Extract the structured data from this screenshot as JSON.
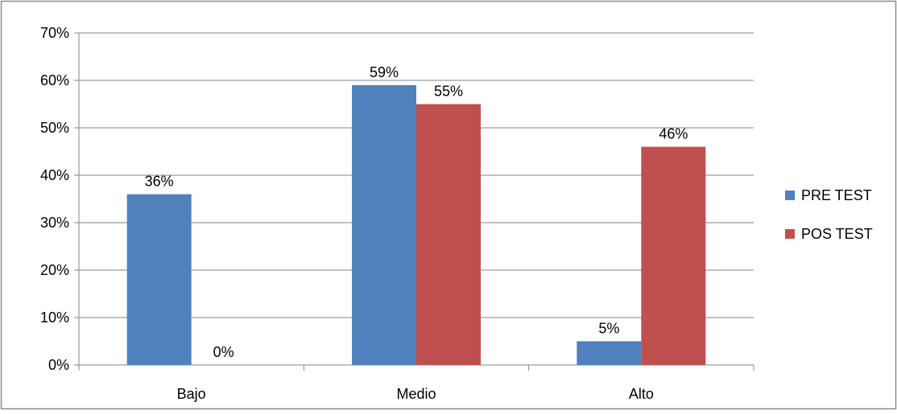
{
  "chart_data": {
    "type": "bar",
    "categories": [
      "Bajo",
      "Medio",
      "Alto"
    ],
    "series": [
      {
        "name": "PRE TEST",
        "values": [
          36,
          59,
          5
        ],
        "labels": [
          "36%",
          "59%",
          "5%"
        ],
        "color": "#4F81BD"
      },
      {
        "name": "POS TEST",
        "values": [
          0,
          55,
          46
        ],
        "labels": [
          "0%",
          "55%",
          "46%"
        ],
        "color": "#C0504D"
      }
    ],
    "ylim": [
      0,
      70
    ],
    "yticks": [
      0,
      10,
      20,
      30,
      40,
      50,
      60,
      70
    ],
    "ytick_labels": [
      "0%",
      "10%",
      "20%",
      "30%",
      "40%",
      "50%",
      "60%",
      "70%"
    ],
    "grid": true,
    "legend_position": "right"
  }
}
